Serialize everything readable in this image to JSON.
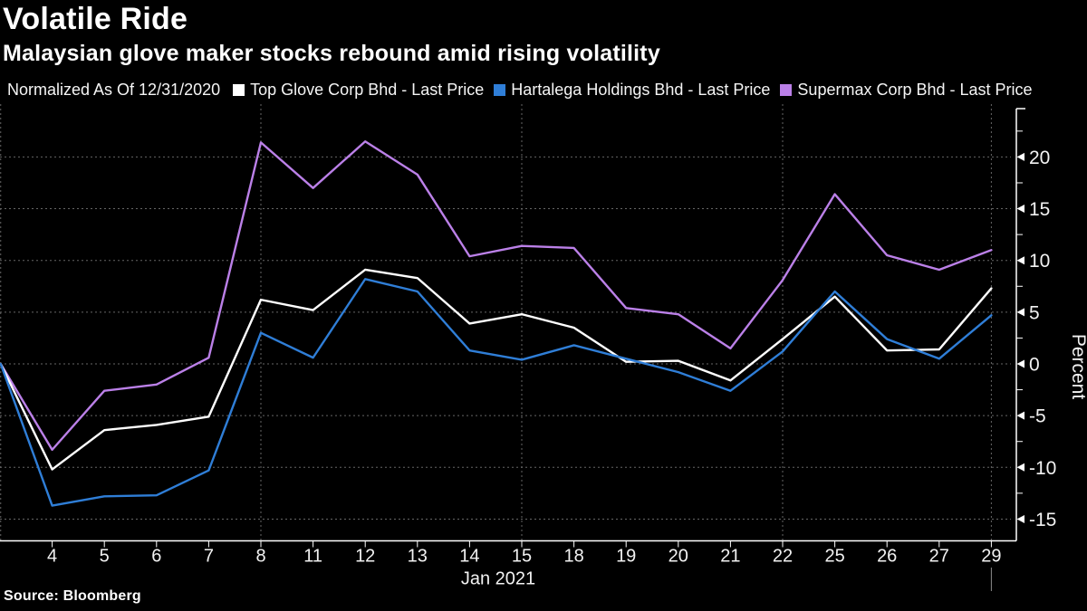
{
  "header": {
    "title": "Volatile Ride",
    "subtitle": "Malaysian glove maker stocks rebound amid rising volatility"
  },
  "legend": {
    "note": "Normalized As Of 12/31/2020",
    "items": [
      {
        "label": "Top Glove Corp Bhd - Last Price",
        "color": "#ffffff"
      },
      {
        "label": "Hartalega Holdings Bhd - Last Price",
        "color": "#2f7ed7"
      },
      {
        "label": "Supermax Corp Bhd - Last Price",
        "color": "#bb80e8"
      }
    ]
  },
  "chart_data": {
    "type": "line",
    "title": "Volatile Ride",
    "subtitle": "Malaysian glove maker stocks rebound amid rising volatility",
    "note": "Normalized As Of 12/31/2020",
    "xlabel": "Jan 2021",
    "ylabel": "Percent",
    "categories": [
      "",
      "4",
      "5",
      "6",
      "7",
      "8",
      "11",
      "12",
      "13",
      "14",
      "15",
      "18",
      "19",
      "20",
      "21",
      "22",
      "25",
      "26",
      "27",
      "29"
    ],
    "series": [
      {
        "name": "Top Glove Corp Bhd - Last Price",
        "color": "#ffffff",
        "values": [
          0,
          -10.2,
          -6.4,
          -5.9,
          -5.1,
          6.2,
          5.2,
          9.1,
          8.3,
          3.9,
          4.8,
          3.5,
          0.2,
          0.3,
          -1.6,
          2.4,
          6.5,
          1.3,
          1.4,
          7.3
        ]
      },
      {
        "name": "Hartalega Holdings Bhd - Last Price",
        "color": "#2f7ed7",
        "values": [
          0,
          -13.7,
          -12.8,
          -12.7,
          -10.3,
          3.0,
          0.6,
          8.2,
          7.0,
          1.3,
          0.4,
          1.8,
          0.5,
          -0.8,
          -2.6,
          1.2,
          7.0,
          2.4,
          0.5,
          4.7
        ]
      },
      {
        "name": "Supermax Corp Bhd - Last Price",
        "color": "#bb80e8",
        "values": [
          0,
          -8.3,
          -2.6,
          -2.0,
          0.6,
          21.4,
          17.0,
          21.5,
          18.3,
          10.4,
          11.4,
          11.2,
          5.4,
          4.8,
          1.5,
          8.1,
          16.4,
          10.5,
          9.1,
          11.0
        ]
      }
    ],
    "y_ticks": [
      20,
      15,
      10,
      5,
      0,
      -5,
      -10,
      -15
    ],
    "y_minor_ticks": [
      22.5,
      17.5,
      12.5,
      7.5,
      2.5,
      -2.5,
      -7.5,
      -12.5
    ],
    "ylim": [
      -17,
      24.6
    ],
    "x_gridline_indices": [
      0,
      5,
      10,
      15,
      19
    ],
    "grid": "dashed",
    "legend_position": "top",
    "y_axis_side": "right"
  },
  "footer": {
    "source": "Source:  Bloomberg"
  }
}
